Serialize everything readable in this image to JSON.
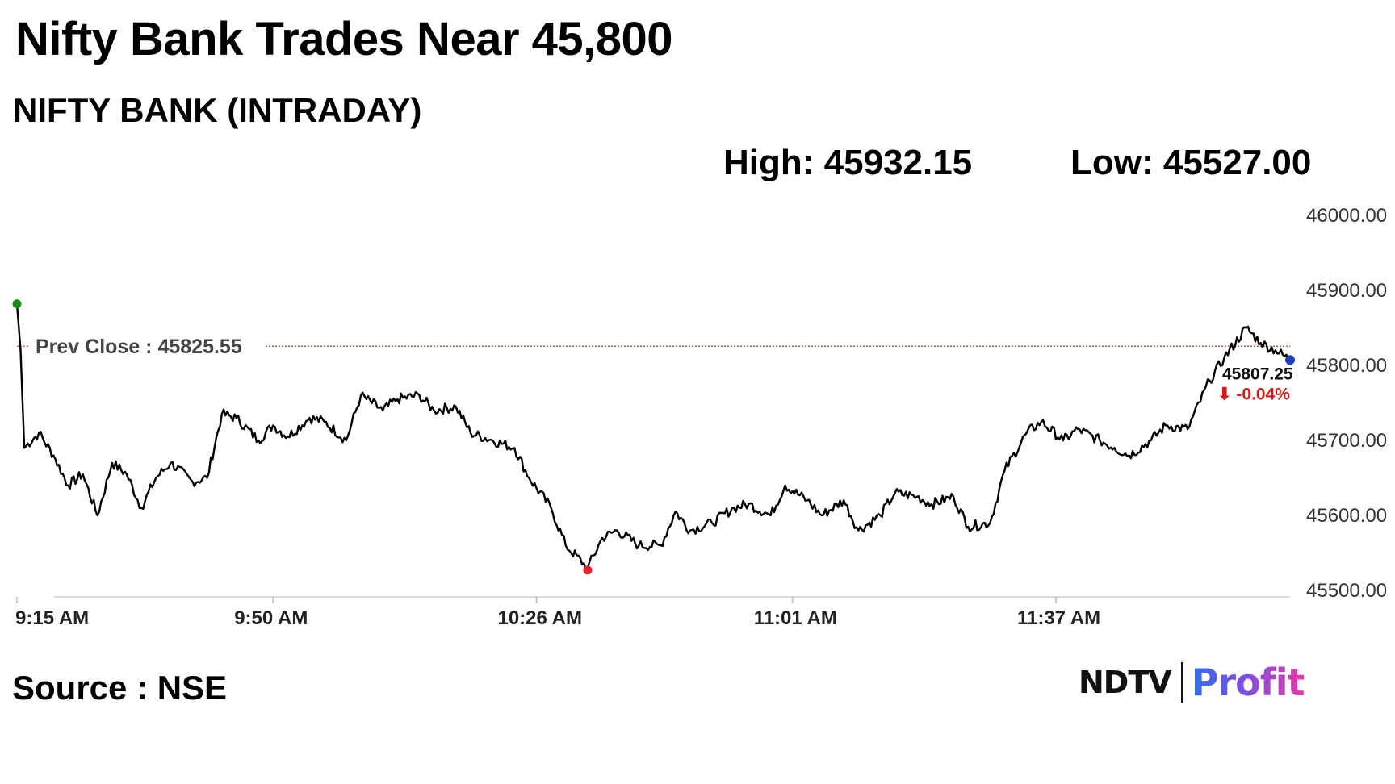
{
  "headline": "Nifty Bank Trades Near 45,800",
  "subtitle": "NIFTY BANK (INTRADAY)",
  "stats": {
    "high": "High: 45932.15",
    "low": "Low: 45527.00"
  },
  "source": "Source : NSE",
  "logo": {
    "brand": "NDTV",
    "product": "Profit"
  },
  "chart_data": {
    "type": "line",
    "title": "NIFTY BANK (INTRADAY)",
    "xlabel": "",
    "ylabel": "",
    "ylim": [
      45500,
      46000
    ],
    "xlim": [
      "9:15 AM",
      "12:09 PM"
    ],
    "y_ticks": [
      "46000.00",
      "45900.00",
      "45800.00",
      "45700.00",
      "45600.00",
      "45500.00"
    ],
    "x_ticks": [
      "9:15 AM",
      "9:50 AM",
      "10:26 AM",
      "11:01 AM",
      "11:37 AM"
    ],
    "prev_close": {
      "label": "Prev Close : 45825.55",
      "value": 45825.55,
      "color": "#c0392b"
    },
    "last": {
      "value_label": "45807.25",
      "change_label": "⬇ -0.04%"
    },
    "markers": {
      "open_color": "#1a8a1a",
      "low_color": "#e3262f",
      "last_color": "#1f3fbf"
    },
    "grid": false,
    "line_color": "#000000",
    "series": [
      {
        "values_approx_hint": "minute-level intraday path read from the chart",
        "x": [
          0,
          0.5,
          1,
          3,
          5,
          7,
          9,
          11,
          13,
          15,
          17,
          19,
          21,
          24,
          26,
          28,
          30,
          33,
          35,
          37,
          40,
          42,
          45,
          47,
          50,
          52,
          55,
          57,
          60,
          62,
          65,
          68,
          70,
          73,
          75,
          78,
          80,
          82,
          85,
          88,
          90,
          92,
          95,
          98,
          100,
          103,
          105,
          108,
          110,
          113,
          115,
          118,
          120,
          123,
          125,
          128,
          130,
          133,
          135,
          138,
          140,
          143,
          145,
          148,
          150,
          152,
          155,
          157,
          160,
          163,
          165,
          168,
          170,
          172,
          174
        ],
        "y": [
          45882,
          45820,
          45690,
          45710,
          45680,
          45640,
          45655,
          45600,
          45670,
          45655,
          45610,
          45650,
          45670,
          45645,
          45650,
          45735,
          45730,
          45700,
          45720,
          45705,
          45730,
          45725,
          45700,
          45760,
          45740,
          45755,
          45760,
          45740,
          45745,
          45710,
          45700,
          45690,
          45650,
          45610,
          45560,
          45530,
          45570,
          45580,
          45560,
          45560,
          45605,
          45580,
          45590,
          45610,
          45615,
          45600,
          45640,
          45620,
          45600,
          45620,
          45580,
          45600,
          45630,
          45625,
          45615,
          45625,
          45585,
          45590,
          45660,
          45710,
          45725,
          45700,
          45715,
          45700,
          45690,
          45680,
          45700,
          45720,
          45715,
          45780,
          45810,
          45850,
          45830,
          45820,
          45807.25
        ],
        "x_unit": "minutes after 9:15 AM"
      }
    ]
  }
}
